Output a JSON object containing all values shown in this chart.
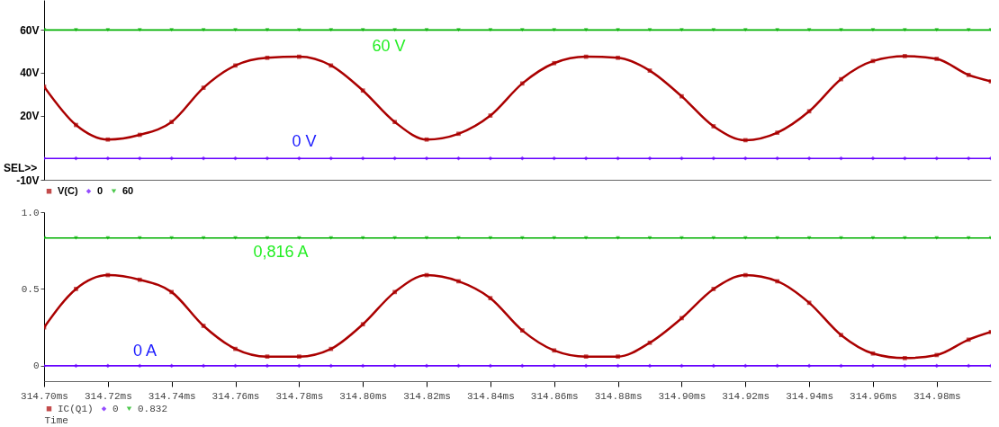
{
  "chart_data": [
    {
      "type": "line",
      "x": [
        314.7,
        314.71,
        314.72,
        314.73,
        314.74,
        314.75,
        314.76,
        314.77,
        314.78,
        314.79,
        314.8,
        314.81,
        314.82,
        314.83,
        314.84,
        314.85,
        314.86,
        314.87,
        314.88,
        314.89,
        314.9,
        314.91,
        314.92,
        314.93,
        314.94,
        314.95,
        314.96,
        314.97,
        314.98,
        314.99,
        314.997
      ],
      "series": [
        {
          "name": "V(C)",
          "color": "#aa0000",
          "marker": "square",
          "values": [
            33.5,
            15.6,
            8.8,
            11,
            17,
            33,
            43.4,
            47,
            47.5,
            43.4,
            31.7,
            17,
            8.8,
            11.5,
            20,
            35,
            44.5,
            47.5,
            47,
            41,
            29,
            15,
            8.5,
            12,
            22,
            37,
            45.5,
            47.8,
            46.5,
            39,
            36
          ]
        },
        {
          "name": "0",
          "color": "#6600ff",
          "marker": "diamond",
          "values": [
            0,
            0,
            0,
            0,
            0,
            0,
            0,
            0,
            0,
            0,
            0,
            0,
            0,
            0,
            0,
            0,
            0,
            0,
            0,
            0,
            0,
            0,
            0,
            0,
            0,
            0,
            0,
            0,
            0,
            0,
            0
          ]
        },
        {
          "name": "60",
          "color": "#00b000",
          "marker": "triangle",
          "values": [
            60,
            60,
            60,
            60,
            60,
            60,
            60,
            60,
            60,
            60,
            60,
            60,
            60,
            60,
            60,
            60,
            60,
            60,
            60,
            60,
            60,
            60,
            60,
            60,
            60,
            60,
            60,
            60,
            60,
            60,
            60
          ]
        }
      ],
      "xlim": [
        314.7,
        314.997
      ],
      "ylim": [
        -10,
        74
      ],
      "yticks": [
        {
          "value": 60,
          "label": "60V"
        },
        {
          "value": 40,
          "label": "40V"
        },
        {
          "value": 20,
          "label": "20V"
        },
        {
          "value": -10,
          "label": "-10V"
        }
      ],
      "tick_labels": "y",
      "grid": false,
      "legend": "bottom left",
      "annotations": [
        "60 V",
        "0 V",
        "SEL>>"
      ]
    },
    {
      "type": "line",
      "x": [
        314.7,
        314.71,
        314.72,
        314.73,
        314.74,
        314.75,
        314.76,
        314.77,
        314.78,
        314.79,
        314.8,
        314.81,
        314.82,
        314.83,
        314.84,
        314.85,
        314.86,
        314.87,
        314.88,
        314.89,
        314.9,
        314.91,
        314.92,
        314.93,
        314.94,
        314.95,
        314.96,
        314.97,
        314.98,
        314.99,
        314.997
      ],
      "series": [
        {
          "name": "IC(Q1)",
          "color": "#aa0000",
          "marker": "square",
          "values": [
            0.25,
            0.5,
            0.59,
            0.56,
            0.48,
            0.26,
            0.11,
            0.06,
            0.06,
            0.11,
            0.27,
            0.48,
            0.59,
            0.55,
            0.44,
            0.23,
            0.1,
            0.06,
            0.06,
            0.15,
            0.31,
            0.5,
            0.59,
            0.55,
            0.41,
            0.2,
            0.08,
            0.05,
            0.07,
            0.17,
            0.22
          ]
        },
        {
          "name": "0",
          "color": "#6600ff",
          "marker": "diamond",
          "values": [
            0,
            0,
            0,
            0,
            0,
            0,
            0,
            0,
            0,
            0,
            0,
            0,
            0,
            0,
            0,
            0,
            0,
            0,
            0,
            0,
            0,
            0,
            0,
            0,
            0,
            0,
            0,
            0,
            0,
            0,
            0
          ]
        },
        {
          "name": "0.832",
          "color": "#00b000",
          "marker": "triangle",
          "values": [
            0.832,
            0.832,
            0.832,
            0.832,
            0.832,
            0.832,
            0.832,
            0.832,
            0.832,
            0.832,
            0.832,
            0.832,
            0.832,
            0.832,
            0.832,
            0.832,
            0.832,
            0.832,
            0.832,
            0.832,
            0.832,
            0.832,
            0.832,
            0.832,
            0.832,
            0.832,
            0.832,
            0.832,
            0.832,
            0.832,
            0.832
          ]
        }
      ],
      "xlim": [
        314.7,
        314.997
      ],
      "ylim": [
        -0.1,
        1.0
      ],
      "xticks": [
        {
          "value": 314.7,
          "label": "314.70ms"
        },
        {
          "value": 314.72,
          "label": "314.72ms"
        },
        {
          "value": 314.74,
          "label": "314.74ms"
        },
        {
          "value": 314.76,
          "label": "314.76ms"
        },
        {
          "value": 314.78,
          "label": "314.78ms"
        },
        {
          "value": 314.8,
          "label": "314.80ms"
        },
        {
          "value": 314.82,
          "label": "314.82ms"
        },
        {
          "value": 314.84,
          "label": "314.84ms"
        },
        {
          "value": 314.86,
          "label": "314.86ms"
        },
        {
          "value": 314.88,
          "label": "314.88ms"
        },
        {
          "value": 314.9,
          "label": "314.90ms"
        },
        {
          "value": 314.92,
          "label": "314.92ms"
        },
        {
          "value": 314.94,
          "label": "314.94ms"
        },
        {
          "value": 314.96,
          "label": "314.96ms"
        },
        {
          "value": 314.98,
          "label": "314.98ms"
        }
      ],
      "yticks": [
        {
          "value": 1.0,
          "label": "1.0"
        },
        0.5,
        0
      ],
      "xlabel": "Time",
      "grid": false,
      "legend": "bottom left",
      "annotations": [
        "0,816 A",
        "0 A"
      ]
    }
  ]
}
